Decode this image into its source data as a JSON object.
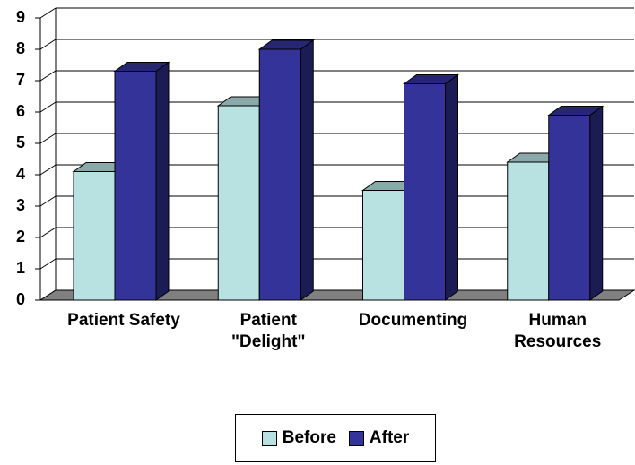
{
  "chart_data": {
    "type": "bar3d",
    "categories": [
      "Patient Safety",
      "Patient \"Delight\"",
      "Documenting",
      "Human Resources"
    ],
    "series": [
      {
        "name": "Before",
        "color": "#b8e2e2",
        "values": [
          4.1,
          6.2,
          3.5,
          4.4
        ]
      },
      {
        "name": "After",
        "color": "#333399",
        "values": [
          7.3,
          8.0,
          6.9,
          5.9
        ]
      }
    ],
    "ylim": [
      0,
      9
    ],
    "yticks": [
      0,
      1,
      2,
      3,
      4,
      5,
      6,
      7,
      8,
      9
    ],
    "grid": true,
    "legend": "bottom"
  }
}
